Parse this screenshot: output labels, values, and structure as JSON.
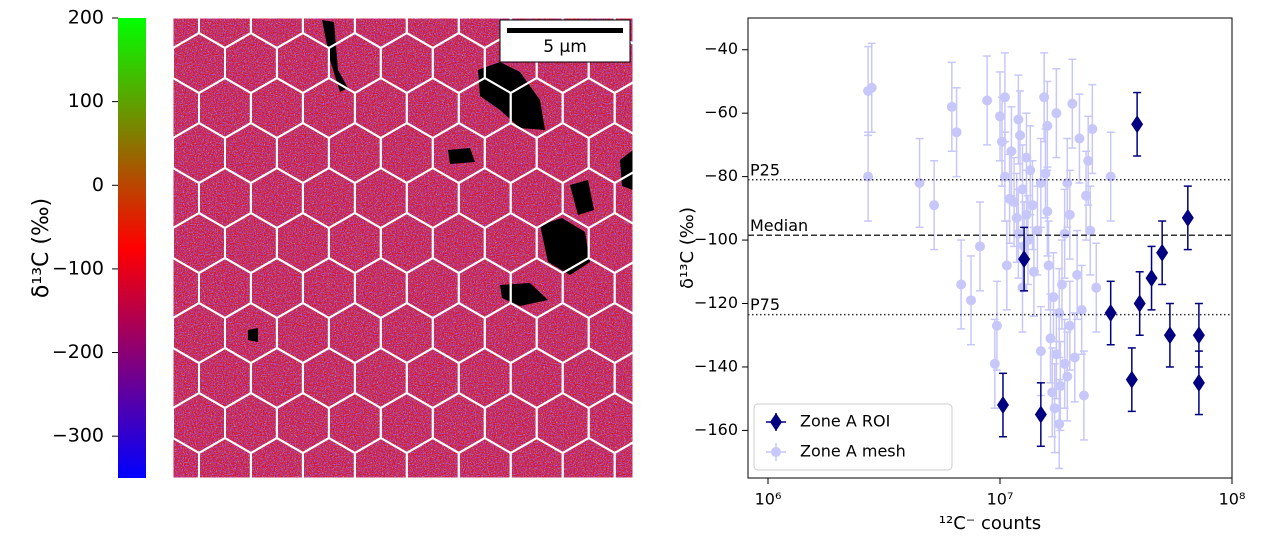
{
  "colorbar": {
    "label": "δ¹³C (‰)",
    "lim": [
      -350,
      200
    ],
    "cmap": [
      "#0000ff",
      "#ff0000",
      "#00ff00"
    ],
    "ticks": [
      200,
      100,
      0,
      {
        "value": -100,
        "label": "−100"
      },
      {
        "value": -200,
        "label": "−200"
      },
      {
        "value": -300,
        "label": "−300"
      }
    ]
  },
  "scale_bar": "5 μm",
  "chart_data": {
    "type": "scatter",
    "xlabel": "¹²C⁻ counts",
    "ylabel": "δ¹³C (‰)",
    "xscale": "log",
    "xlim": [
      820000,
      100000000
    ],
    "ylim": [
      -175,
      -30
    ],
    "xticks": [
      {
        "value": 1000000,
        "label": "10⁶"
      },
      {
        "value": 10000000,
        "label": "10⁷"
      },
      {
        "value": 100000000,
        "label": "10⁸"
      }
    ],
    "yticks": [
      {
        "value": -40,
        "label": "−40"
      },
      {
        "value": -60,
        "label": "−60"
      },
      {
        "value": -80,
        "label": "−80"
      },
      {
        "value": -100,
        "label": "−100"
      },
      {
        "value": -120,
        "label": "−120"
      },
      {
        "value": -140,
        "label": "−140"
      },
      {
        "value": -160,
        "label": "−160"
      }
    ],
    "hlines": [
      {
        "value": -81,
        "label": "P25",
        "style": "dotted"
      },
      {
        "value": -98.5,
        "label": "Median",
        "style": "dashed"
      },
      {
        "value": -123.5,
        "label": "P75",
        "style": "dotted"
      }
    ],
    "legend": "lower left",
    "series": [
      {
        "name": "Zone A ROI",
        "color": "#000080",
        "marker": "diamond",
        "opacity": 1,
        "error": 10,
        "x": [
          39000000.0,
          64500000.0,
          50000000.0,
          45000000.0,
          40000000.0,
          30000000.0,
          54000000.0,
          72000000.0,
          72000000.0,
          37000000.0,
          10300000.0,
          15000000.0,
          12700000.0
        ],
        "values": [
          -63.5,
          -93,
          -104,
          -112,
          -120,
          -123,
          -130,
          -130,
          -145,
          -144,
          -152,
          -155,
          -106
        ]
      },
      {
        "name": "Zone A mesh",
        "color": "#4a4af0",
        "marker": "circle",
        "opacity": 0.3,
        "error": 14,
        "x": [
          2700000.0,
          2800000.0,
          2700000.0,
          4500000.0,
          5200000.0,
          6200000.0,
          6500000.0,
          6800000.0,
          7500000.0,
          8200000.0,
          8800000.0,
          9500000.0,
          9700000.0,
          10000000.0,
          10200000.0,
          10500000.0,
          10500000.0,
          10700000.0,
          11000000.0,
          11200000.0,
          11500000.0,
          11800000.0,
          12000000.0,
          12000000.0,
          12200000.0,
          12500000.0,
          12700000.0,
          13000000.0,
          13000000.0,
          13200000.0,
          13500000.0,
          13800000.0,
          14000000.0,
          14500000.0,
          15000000.0,
          15000000.0,
          15500000.0,
          16000000.0,
          16000000.0,
          16200000.0,
          16500000.0,
          16800000.0,
          17000000.0,
          17200000.0,
          17500000.0,
          17500000.0,
          18000000.0,
          18000000.0,
          18200000.0,
          18500000.0,
          19000000.0,
          19000000.0,
          19500000.0,
          20000000.0,
          20000000.0,
          20500000.0,
          21000000.0,
          21500000.0,
          22000000.0,
          22500000.0,
          23000000.0,
          23500000.0,
          24000000.0,
          24500000.0,
          25000000.0,
          26000000.0,
          30000000.0,
          15700000.0,
          12500000.0,
          19500000.0
        ],
        "values": [
          -53,
          -52,
          -80,
          -82,
          -89,
          -58,
          -66,
          -114,
          -119,
          -102,
          -56,
          -139,
          -127,
          -61,
          -69,
          -55,
          -80,
          -108,
          -87,
          -72,
          -88,
          -93,
          -62,
          -98,
          -67,
          -84,
          -102,
          -74,
          -92,
          -100,
          -78,
          -89,
          -110,
          -97,
          -135,
          -82,
          -55,
          -64,
          -91,
          -108,
          -131,
          -148,
          -118,
          -153,
          -60,
          -136,
          -158,
          -123,
          -146,
          -114,
          -139,
          -98,
          -82,
          -127,
          -92,
          -57,
          -137,
          -111,
          -68,
          -122,
          -149,
          -86,
          -75,
          -97,
          -65,
          -115,
          -80,
          -79,
          -115,
          -143
        ]
      }
    ]
  }
}
